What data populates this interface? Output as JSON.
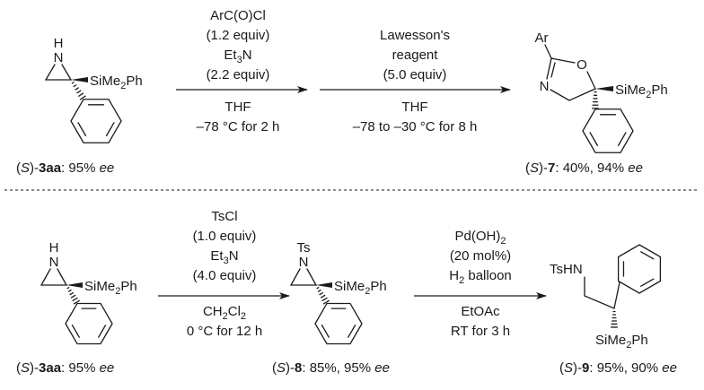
{
  "top": {
    "start": {
      "h": "H",
      "n": "N",
      "si": [
        {
          "t": "SiMe"
        },
        {
          "t": "2",
          "s": "sub"
        },
        {
          "t": "Ph"
        }
      ],
      "label": [
        {
          "t": "("
        },
        {
          "t": "S",
          "s": "i"
        },
        {
          "t": ")-"
        },
        {
          "t": "3aa",
          "s": "b"
        },
        {
          "t": ": 95% "
        },
        {
          "t": "ee",
          "s": "i"
        }
      ]
    },
    "step1": {
      "above": [
        [
          {
            "t": "ArC(O)Cl"
          }
        ],
        [
          {
            "t": "(1.2 equiv)"
          }
        ],
        [
          {
            "t": "Et"
          },
          {
            "t": "3",
            "s": "sub"
          },
          {
            "t": "N"
          }
        ],
        [
          {
            "t": "(2.2 equiv)"
          }
        ]
      ],
      "below": [
        [
          {
            "t": "THF"
          }
        ],
        [
          {
            "t": "–78 °C for 2 h"
          }
        ]
      ]
    },
    "step2": {
      "above": [
        [
          {
            "t": "Lawesson's"
          }
        ],
        [
          {
            "t": "reagent"
          }
        ],
        [
          {
            "t": "(5.0 equiv)"
          }
        ]
      ],
      "below": [
        [
          {
            "t": "THF"
          }
        ],
        [
          {
            "t": "–78 to –30 °C for 8 h"
          }
        ]
      ]
    },
    "product": {
      "ar": "Ar",
      "o": "O",
      "n": "N",
      "si": [
        {
          "t": "SiMe"
        },
        {
          "t": "2",
          "s": "sub"
        },
        {
          "t": "Ph"
        }
      ],
      "label": [
        {
          "t": "("
        },
        {
          "t": "S",
          "s": "i"
        },
        {
          "t": ")-"
        },
        {
          "t": "7",
          "s": "b"
        },
        {
          "t": ": 40%, 94% "
        },
        {
          "t": "ee",
          "s": "i"
        }
      ]
    }
  },
  "bottom": {
    "start": {
      "h": "H",
      "n": "N",
      "si": [
        {
          "t": "SiMe"
        },
        {
          "t": "2",
          "s": "sub"
        },
        {
          "t": "Ph"
        }
      ],
      "label": [
        {
          "t": "("
        },
        {
          "t": "S",
          "s": "i"
        },
        {
          "t": ")-"
        },
        {
          "t": "3aa",
          "s": "b"
        },
        {
          "t": ": 95% "
        },
        {
          "t": "ee",
          "s": "i"
        }
      ]
    },
    "step1": {
      "above": [
        [
          {
            "t": "TsCl"
          }
        ],
        [
          {
            "t": "(1.0 equiv)"
          }
        ],
        [
          {
            "t": "Et"
          },
          {
            "t": "3",
            "s": "sub"
          },
          {
            "t": "N"
          }
        ],
        [
          {
            "t": "(4.0 equiv)"
          }
        ]
      ],
      "below": [
        [
          {
            "t": "CH"
          },
          {
            "t": "2",
            "s": "sub"
          },
          {
            "t": "Cl"
          },
          {
            "t": "2",
            "s": "sub"
          }
        ],
        [
          {
            "t": "0 °C for 12 h"
          }
        ]
      ]
    },
    "intermediate": {
      "ts": "Ts",
      "n": "N",
      "si": [
        {
          "t": "SiMe"
        },
        {
          "t": "2",
          "s": "sub"
        },
        {
          "t": "Ph"
        }
      ],
      "label": [
        {
          "t": "("
        },
        {
          "t": "S",
          "s": "i"
        },
        {
          "t": ")-"
        },
        {
          "t": "8",
          "s": "b"
        },
        {
          "t": ": 85%, 95% "
        },
        {
          "t": "ee",
          "s": "i"
        }
      ]
    },
    "step2": {
      "above": [
        [
          {
            "t": "Pd(OH)"
          },
          {
            "t": "2",
            "s": "sub"
          }
        ],
        [
          {
            "t": "(20 mol%)"
          }
        ],
        [
          {
            "t": "H"
          },
          {
            "t": "2",
            "s": "sub"
          },
          {
            "t": " balloon"
          }
        ]
      ],
      "below": [
        [
          {
            "t": "EtOAc"
          }
        ],
        [
          {
            "t": "RT for 3 h"
          }
        ]
      ]
    },
    "product": {
      "tshn": "TsHN",
      "si": [
        {
          "t": "SiMe"
        },
        {
          "t": "2",
          "s": "sub"
        },
        {
          "t": "Ph"
        }
      ],
      "label": [
        {
          "t": "("
        },
        {
          "t": "S",
          "s": "i"
        },
        {
          "t": ")-"
        },
        {
          "t": "9",
          "s": "b"
        },
        {
          "t": ": 95%, 90% "
        },
        {
          "t": "ee",
          "s": "i"
        }
      ]
    }
  }
}
